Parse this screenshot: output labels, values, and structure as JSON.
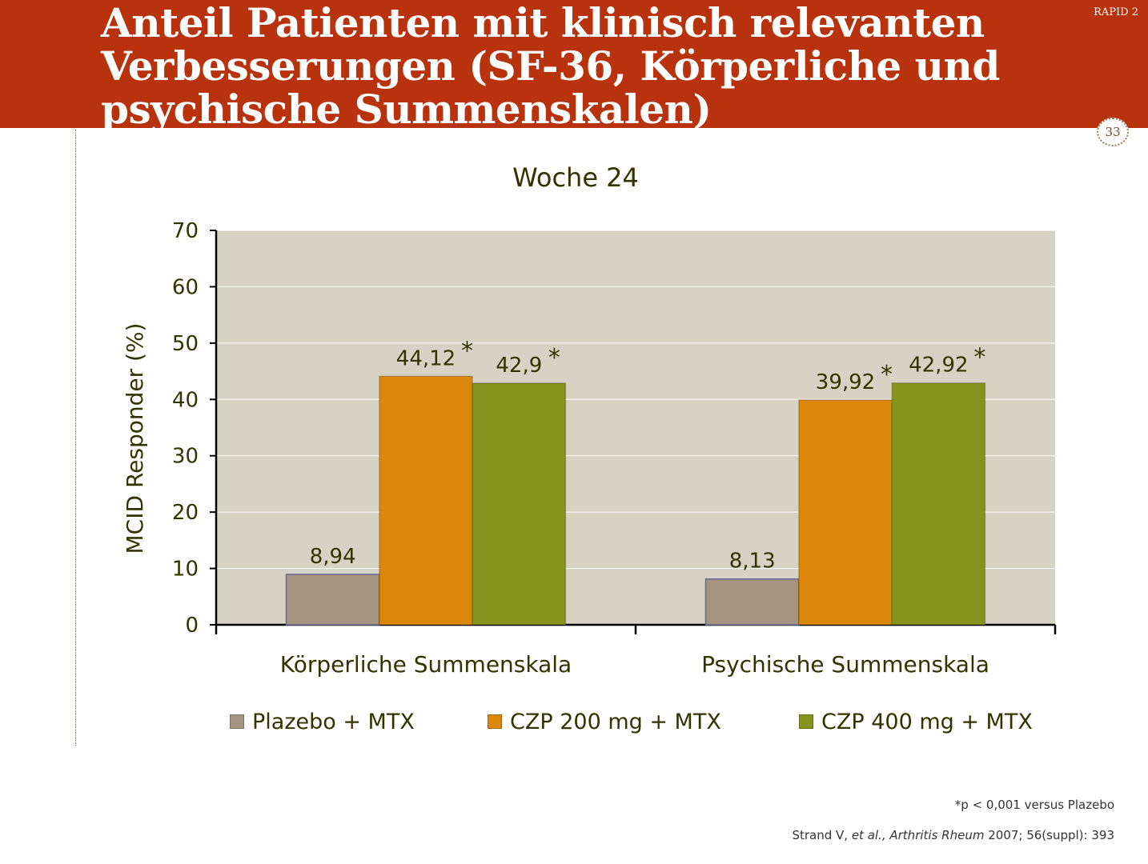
{
  "header": {
    "title": "Anteil Patienten mit klinisch relevanten Verbesserungen (SF-36, Körperliche und psychische Summenskalen)",
    "tag": "RAPID 2",
    "page_number": "33"
  },
  "colors": {
    "header_bg": "#b8320e",
    "plot_bg": "#d6d3c5",
    "placebo": "#a59480",
    "czp200": "#db870b",
    "czp400": "#84931b"
  },
  "chart_data": {
    "type": "bar",
    "title": "Woche 24",
    "ylabel": "MCID Responder (%)",
    "xlabel": "",
    "ylim": [
      0,
      70
    ],
    "yticks": [
      "0",
      "10",
      "20",
      "30",
      "40",
      "50",
      "60",
      "70"
    ],
    "categories": [
      "Körperliche Summenskala",
      "Psychische Summenskala"
    ],
    "series": [
      {
        "name": "Plazebo + MTX",
        "values": [
          8.94,
          8.13
        ],
        "labels": [
          "8,94",
          "8,13"
        ],
        "color": "#a59480",
        "significant": [
          false,
          false
        ]
      },
      {
        "name": "CZP 200 mg + MTX",
        "values": [
          44.12,
          39.92
        ],
        "labels": [
          "44,12",
          "39,92"
        ],
        "color": "#db870b",
        "significant": [
          true,
          true
        ]
      },
      {
        "name": "CZP 400 mg + MTX",
        "values": [
          42.9,
          42.92
        ],
        "labels": [
          "42,9",
          "42,92"
        ],
        "color": "#84931b",
        "significant": [
          true,
          true
        ]
      }
    ],
    "significance_marker": "*",
    "grid": true,
    "legend_position": "bottom"
  },
  "footnote": "*p < 0,001 versus Plazebo",
  "citation": {
    "authors": "Strand V,",
    "etal": "et al.,",
    "journal": "Arthritis Rheum",
    "details": "2007; 56(suppl): 393"
  }
}
